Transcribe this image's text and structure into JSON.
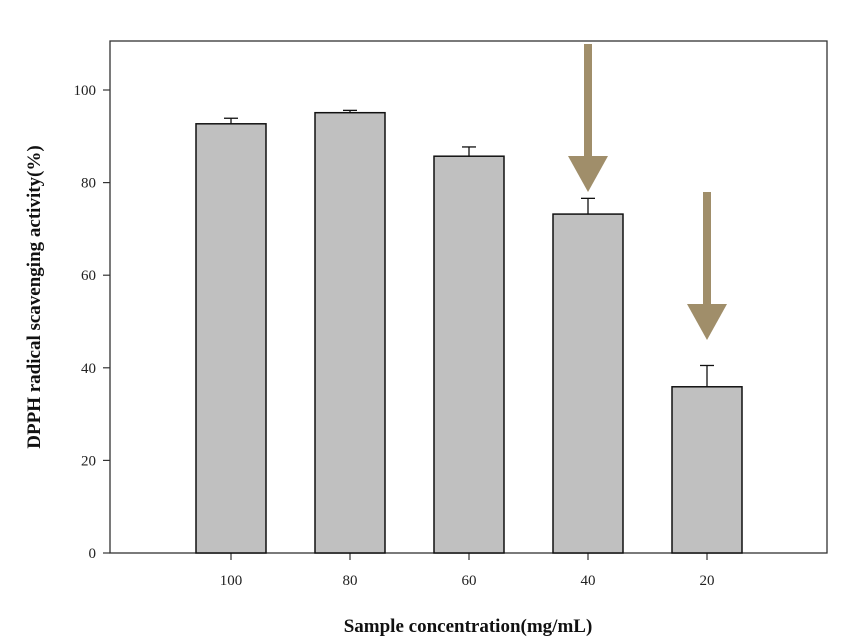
{
  "chart_data": {
    "type": "bar",
    "title": "",
    "xlabel": "Sample concentration(mg/mL)",
    "ylabel": "DPPH radical scavenging activity(%)",
    "categories": [
      "100",
      "80",
      "60",
      "40",
      "20"
    ],
    "values": [
      92.7,
      95.1,
      85.7,
      73.2,
      35.9
    ],
    "errors": [
      1.2,
      0.5,
      2.0,
      3.4,
      4.6
    ],
    "ylim": [
      0,
      110
    ],
    "yticks": [
      0,
      20,
      40,
      60,
      80,
      100
    ],
    "grid": false,
    "legend": "none",
    "colors": {
      "bar": "#c0c0c0",
      "bar_edge": "#111111",
      "arrow": "#a08e6a"
    },
    "annotations": [
      {
        "type": "arrow",
        "category": "40",
        "direction": "down"
      },
      {
        "type": "arrow",
        "category": "20",
        "direction": "down"
      }
    ]
  }
}
